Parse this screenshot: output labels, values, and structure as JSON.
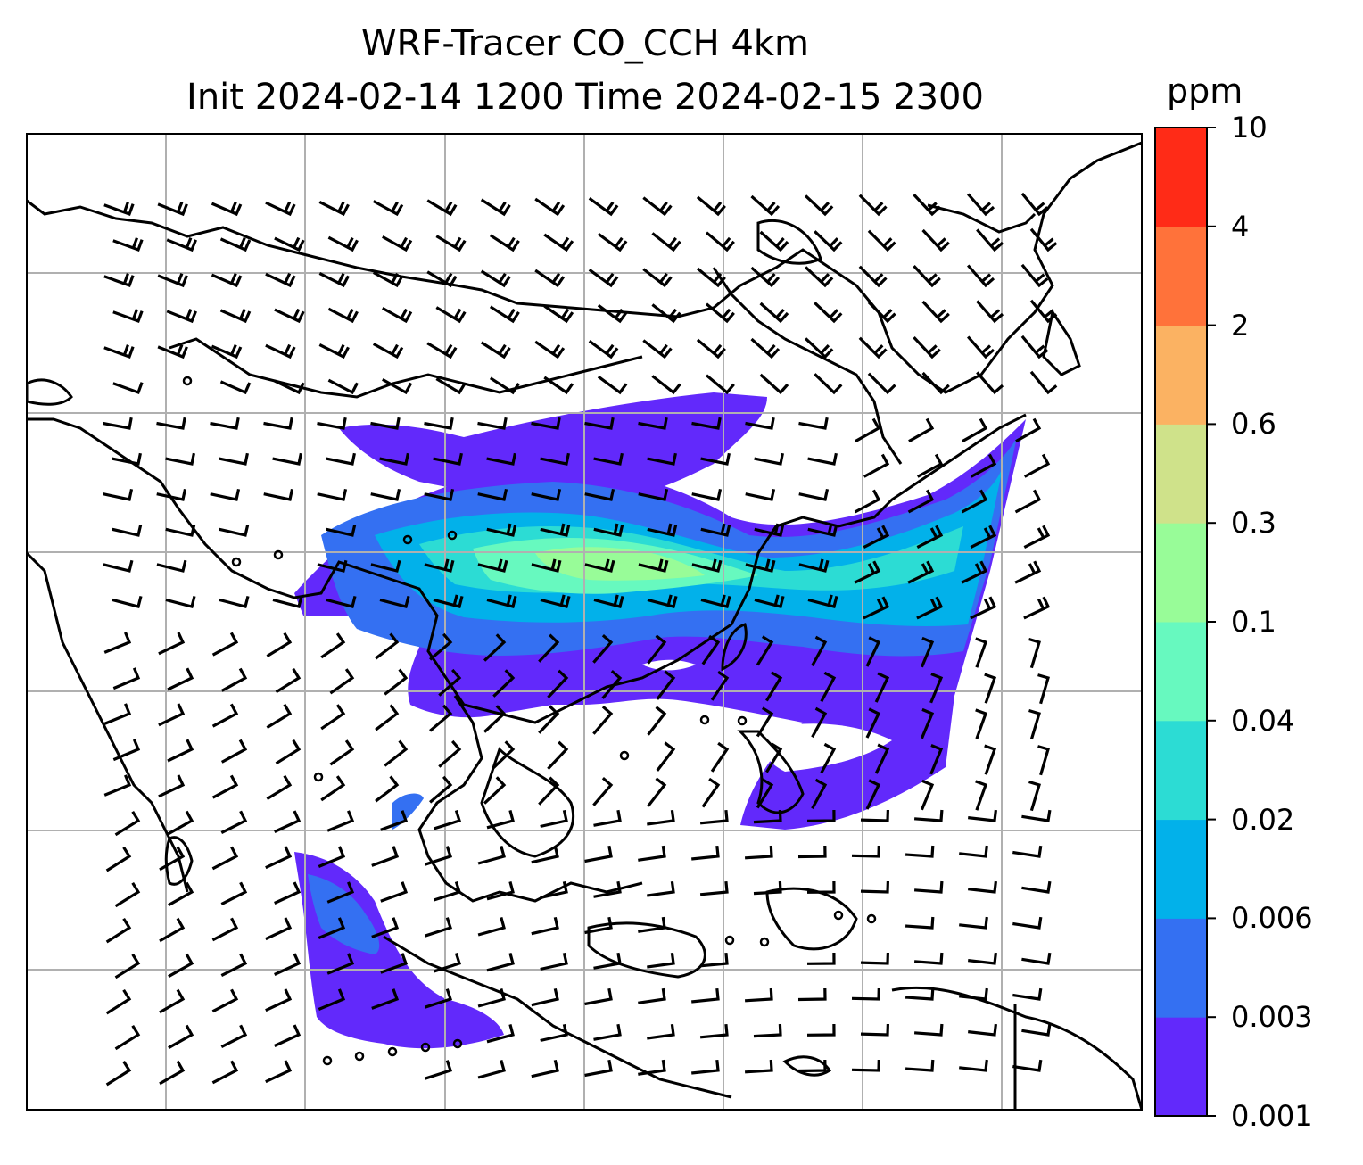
{
  "title": {
    "line1": "WRF-Tracer CO_CCH 4km",
    "line2": "Init 2024-02-14 1200 Time 2024-02-15 2300"
  },
  "colorbar": {
    "unit": "ppm",
    "ticks": [
      "0.001",
      "0.003",
      "0.006",
      "0.02",
      "0.04",
      "0.1",
      "0.3",
      "0.6",
      "2",
      "4",
      "10"
    ],
    "colors": [
      "#6229fb",
      "#3470f2",
      "#02b1ea",
      "#2cdcd4",
      "#67f9bf",
      "#98fc98",
      "#cfe28a",
      "#fbb262",
      "#ff723a",
      "#ff2b17"
    ]
  },
  "map": {
    "gridlines": true,
    "barbs_color": "#000000",
    "coast_color": "#000000"
  }
}
